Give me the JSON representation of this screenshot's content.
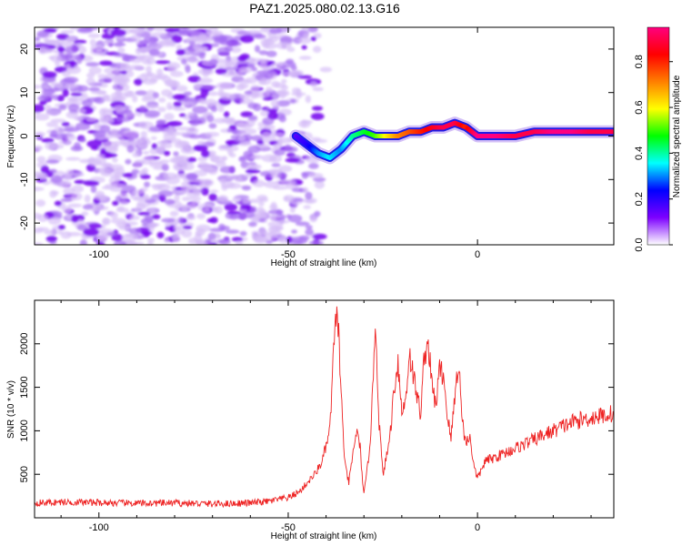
{
  "title": "PAZ1.2025.080.02.13.G16",
  "chart_data": [
    {
      "type": "heatmap",
      "xlabel": "Height of straight line (km)",
      "ylabel": "Frequency (Hz)",
      "xlim": [
        -117,
        36
      ],
      "ylim": [
        -25,
        25
      ],
      "xticks": [
        -100,
        -50,
        0
      ],
      "yticks": [
        -20,
        -10,
        0,
        10,
        20
      ],
      "noise_region_x": [
        -117,
        -40
      ],
      "ridge": {
        "x": [
          -48,
          -45,
          -42,
          -39,
          -36,
          -33,
          -30,
          -27,
          -24,
          -21,
          -18,
          -15,
          -12,
          -9,
          -6,
          -3,
          0,
          5,
          10,
          15,
          20,
          25,
          30,
          36
        ],
        "y": [
          0,
          -2,
          -4,
          -5,
          -3,
          0,
          1,
          0,
          0,
          0,
          1,
          1,
          2,
          2,
          3,
          2,
          0,
          0,
          0,
          1,
          1,
          1,
          1,
          1
        ],
        "amplitude": [
          0.15,
          0.2,
          0.3,
          0.35,
          0.3,
          0.4,
          0.45,
          0.5,
          0.6,
          0.7,
          0.75,
          0.8,
          0.85,
          0.9,
          0.9,
          0.8,
          0.95,
          0.95,
          0.9,
          0.9,
          0.95,
          0.95,
          0.9,
          0.9
        ]
      },
      "colorbar": {
        "label": "Normalized spectral amplitude",
        "range": [
          0.0,
          0.95
        ],
        "ticks": [
          "0.0",
          "0.2",
          "0.4",
          "0.6",
          "0.8"
        ],
        "tick_values": [
          0.0,
          0.2,
          0.4,
          0.6,
          0.8
        ],
        "colors": [
          "#ffffff",
          "#7d00ff",
          "#0000ff",
          "#00ffff",
          "#00ff00",
          "#ffff00",
          "#ff7f00",
          "#ff0000",
          "#ff007f"
        ]
      }
    },
    {
      "type": "line",
      "xlabel": "Height of straight line (km)",
      "ylabel": "SNR (10 * v/v)",
      "xlim": [
        -117,
        36
      ],
      "ylim": [
        0,
        2500
      ],
      "xticks": [
        -100,
        -50,
        0
      ],
      "yticks": [
        500,
        1000,
        1500,
        2000
      ],
      "series": [
        {
          "color": "#ee2222",
          "x": [
            -117,
            -110,
            -100,
            -90,
            -80,
            -70,
            -60,
            -55,
            -50,
            -47,
            -45,
            -43,
            -41,
            -39,
            -38,
            -37,
            -36,
            -35,
            -34,
            -33,
            -32,
            -31,
            -30,
            -29,
            -28,
            -27,
            -26,
            -25,
            -24,
            -23,
            -22,
            -21,
            -20,
            -19,
            -18,
            -17,
            -16,
            -15,
            -14,
            -13,
            -12,
            -11,
            -10,
            -9,
            -8,
            -7,
            -6,
            -5,
            -4,
            -3,
            -2,
            -1,
            0,
            1,
            2,
            5,
            10,
            15,
            20,
            25,
            30,
            36
          ],
          "y": [
            170,
            180,
            175,
            165,
            170,
            160,
            170,
            190,
            230,
            300,
            400,
            500,
            650,
            1000,
            1900,
            2450,
            1400,
            600,
            400,
            700,
            1000,
            800,
            250,
            600,
            1100,
            2300,
            1100,
            500,
            700,
            1000,
            1500,
            1800,
            1200,
            1350,
            1900,
            1650,
            1400,
            1200,
            1900,
            2000,
            1500,
            1300,
            1700,
            1650,
            1200,
            900,
            1400,
            1800,
            1100,
            850,
            950,
            600,
            450,
            550,
            650,
            700,
            800,
            900,
            1000,
            1100,
            1150,
            1200
          ]
        }
      ]
    }
  ]
}
